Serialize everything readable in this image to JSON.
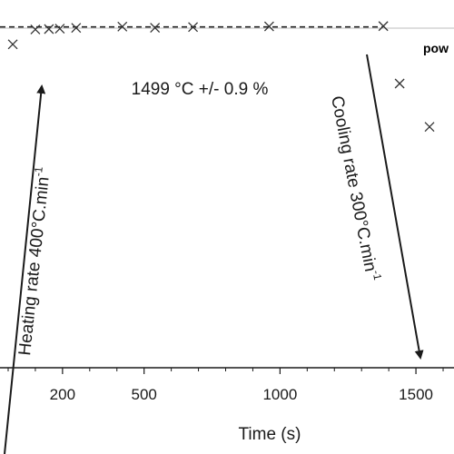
{
  "chart_data": {
    "type": "scatter",
    "xlabel": "Time (s)",
    "x_ticks": [
      200,
      500,
      1000,
      1500
    ],
    "xlim": [
      -30,
      1640
    ],
    "ylim": [
      0,
      1600
    ],
    "legend_partial": "pow",
    "reference_line": {
      "value": 1499,
      "label": "1499 °C +/- 0.9 %",
      "style": "dashed"
    },
    "series": [
      {
        "marker": "x",
        "color": "#333333",
        "points": [
          {
            "x": 17,
            "y": 1370
          },
          {
            "x": 100,
            "y": 1480
          },
          {
            "x": 150,
            "y": 1483
          },
          {
            "x": 190,
            "y": 1486
          },
          {
            "x": 250,
            "y": 1492
          },
          {
            "x": 420,
            "y": 1501
          },
          {
            "x": 540,
            "y": 1493
          },
          {
            "x": 680,
            "y": 1498
          },
          {
            "x": 960,
            "y": 1503
          },
          {
            "x": 1380,
            "y": 1505
          },
          {
            "x": 1440,
            "y": 1080
          },
          {
            "x": 1550,
            "y": 760
          }
        ]
      }
    ],
    "annotations": [
      {
        "text_main": "Heating rate 400°C.min",
        "text_sup": "-1"
      },
      {
        "text_main": "Cooling rate 300°C.min",
        "text_sup": "-1"
      }
    ]
  }
}
